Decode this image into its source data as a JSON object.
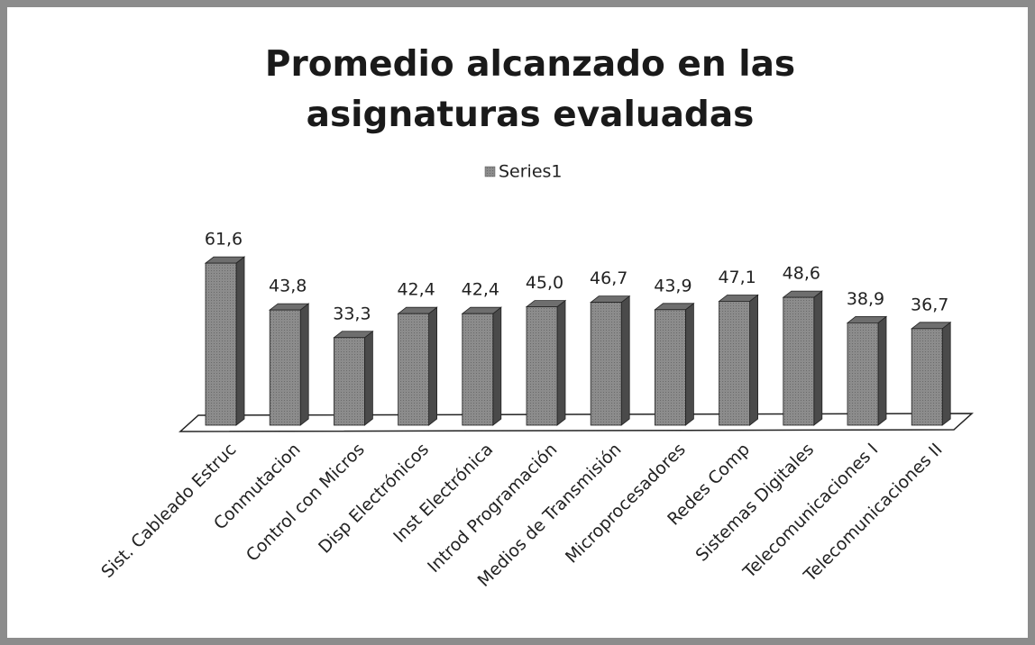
{
  "chart_data": {
    "type": "bar3d",
    "title": "Promedio alcanzado en las asignaturas evaluadas",
    "categories": [
      "Sist. Cableado Estruc",
      "Conmutacion",
      "Control con Micros",
      "Disp Electrónicos",
      "Inst Electrónica",
      "Introd Programación",
      "Medios de Transmisión",
      "Microprocesadores",
      "Redes Comp",
      "Sistemas Digitales",
      "Telecomunicaciones I",
      "Telecomunicaciones II"
    ],
    "series": [
      {
        "name": "Series1",
        "color": "#8c8c8c",
        "values": [
          61.6,
          43.8,
          33.3,
          42.4,
          42.4,
          45.0,
          46.7,
          43.9,
          47.1,
          48.6,
          38.9,
          36.7
        ],
        "value_labels": [
          "61,6",
          "43,8",
          "33,3",
          "42,4",
          "42,4",
          "45,0",
          "46,7",
          "43,9",
          "47,1",
          "48,6",
          "38,9",
          "36,7"
        ]
      }
    ],
    "legend": "top"
  }
}
